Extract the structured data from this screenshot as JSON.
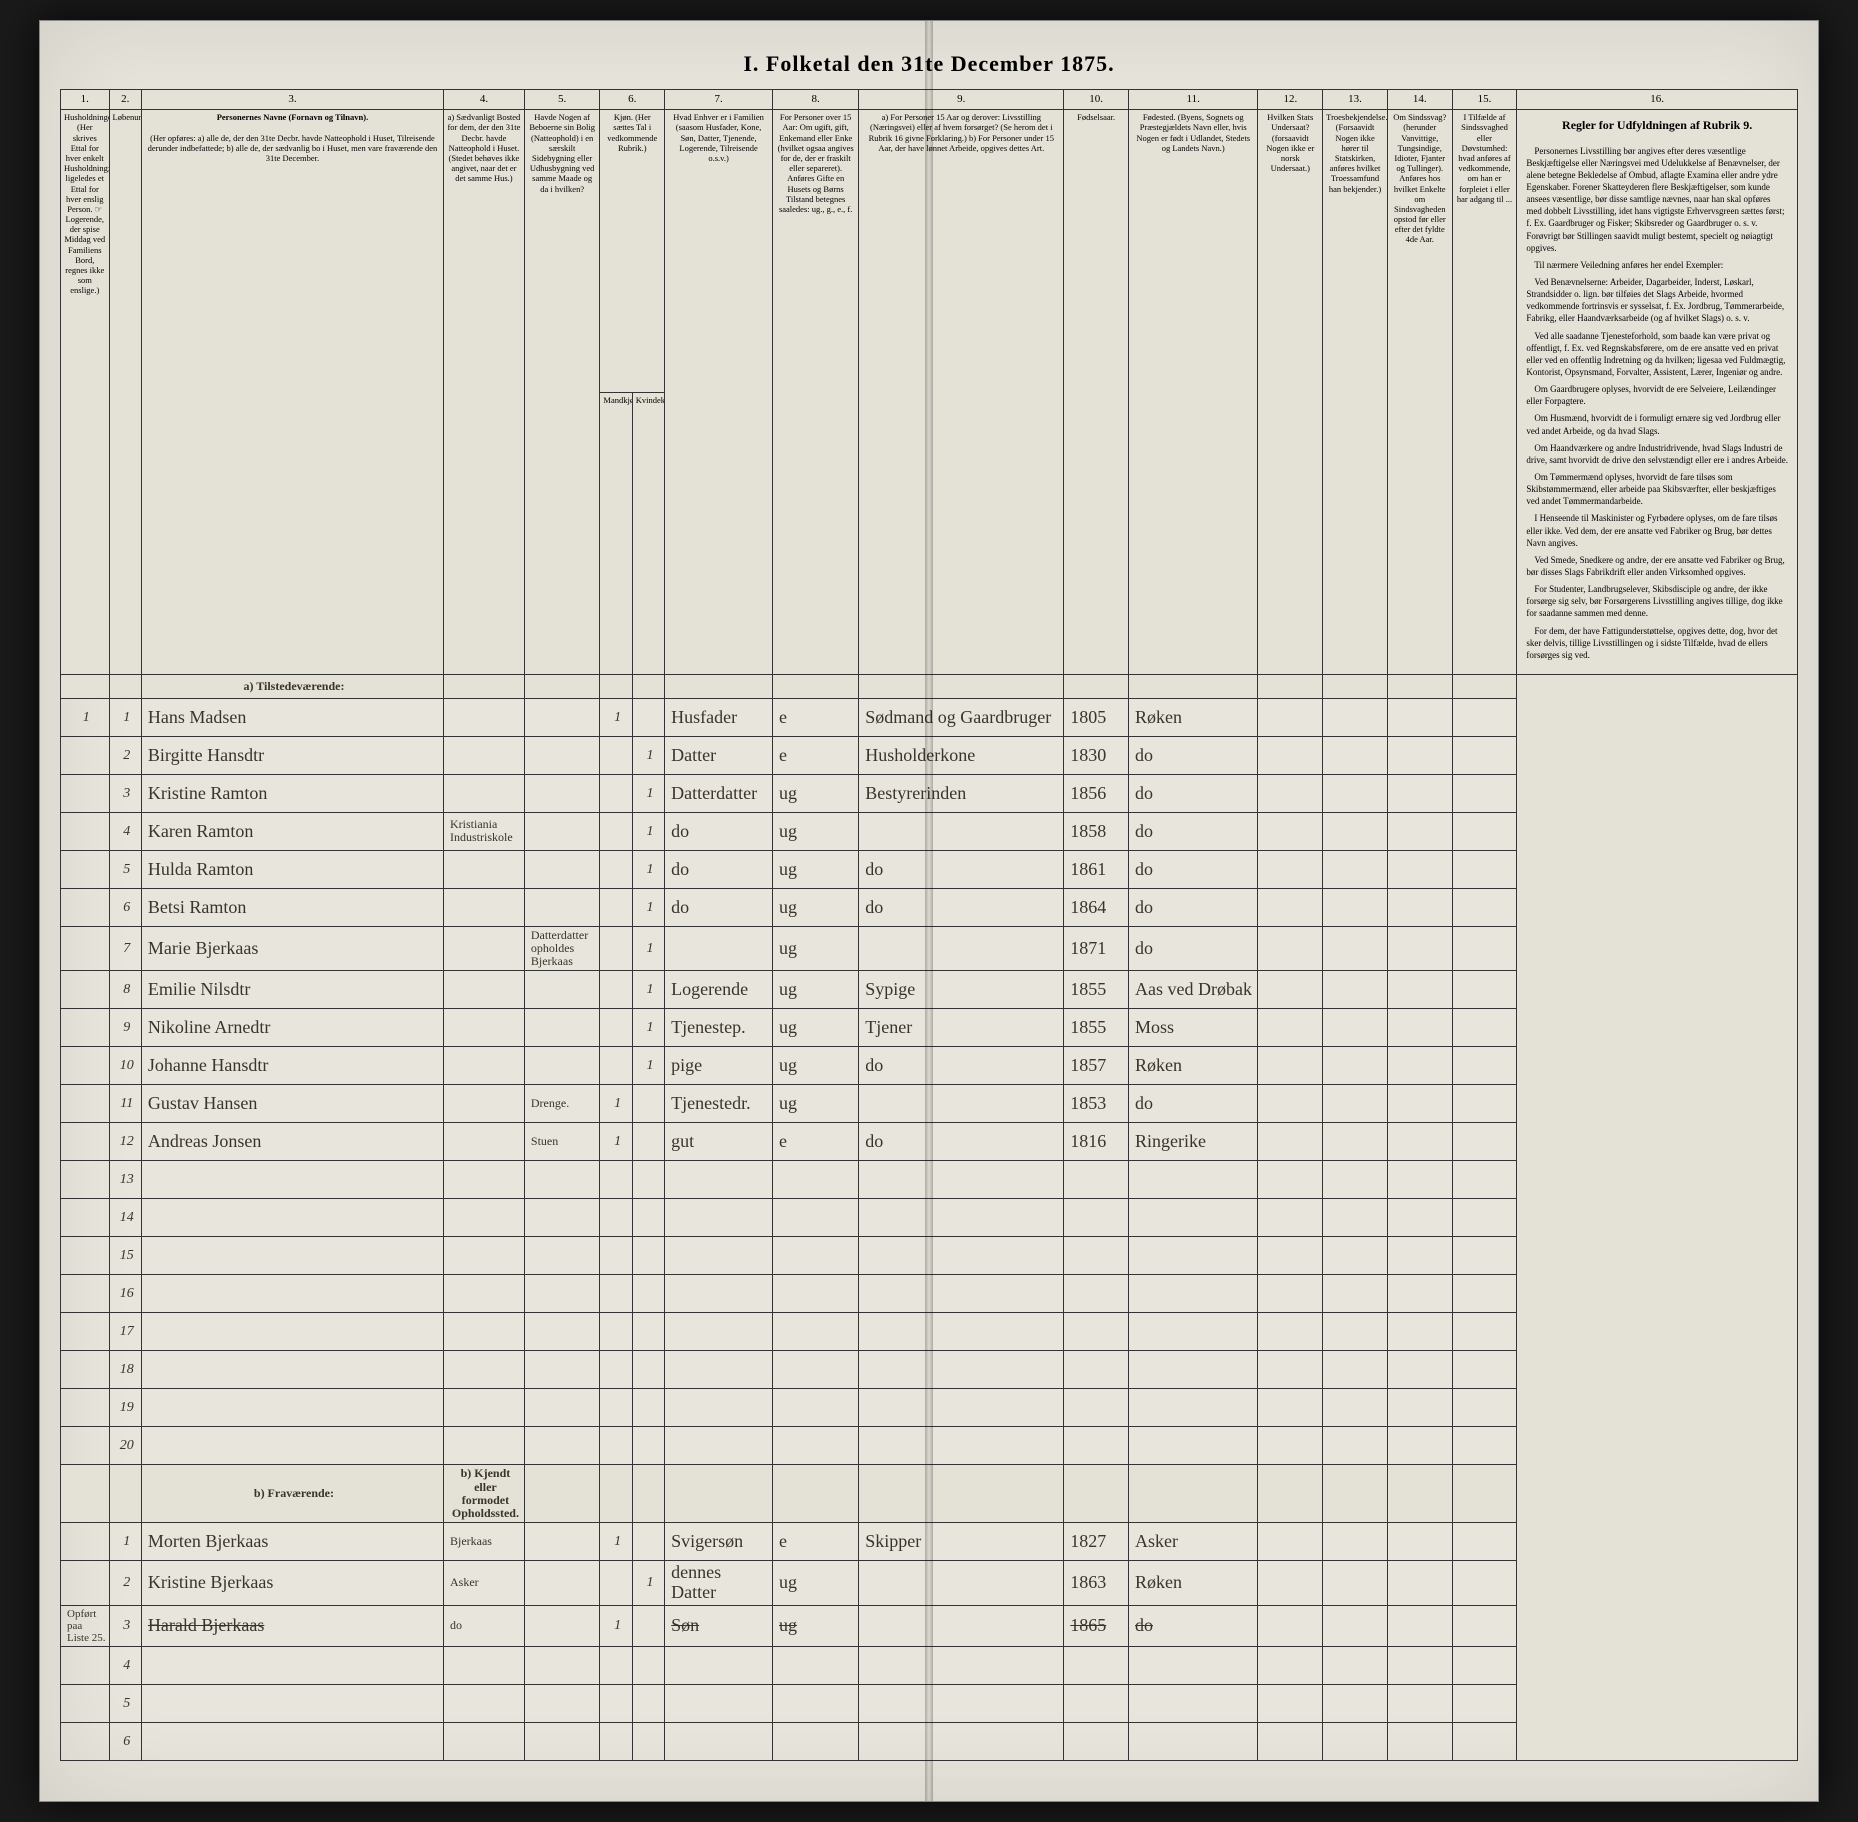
{
  "title": "I. Folketal den 31te December 1875.",
  "columns": {
    "nums": [
      "1.",
      "2.",
      "3.",
      "4.",
      "5.",
      "6.",
      "7.",
      "8.",
      "9.",
      "10.",
      "11.",
      "12.",
      "13.",
      "14.",
      "15.",
      "16."
    ],
    "h1": "Husholdninger. (Her skrives Ettal for hver enkelt Husholdning; ligeledes et Ettal for hver enslig Person. ☞ Logerende, der spise Middag ved Familiens Bord, regnes ikke som enslige.)",
    "h2": "Løbenummer.",
    "h3_title": "Personernes Navne (Fornavn og Tilnavn).",
    "h3_body": "(Her opføres: a) alle de, der den 31te Decbr. havde Natteophold i Huset, Tilreisende derunder indbefattede; b) alle de, der sædvanlig bo i Huset, men vare fraværende den 31te December.",
    "h4": "a) Sædvanligt Bosted for dem, der den 31te Decbr. havde Natteophold i Huset. (Stedet behøves ikke angivet, naar det er det samme Hus.)",
    "h5": "Havde Nogen af Beboerne sin Bolig (Natteophold) i en særskilt Sidebygning eller Udhusbygning ved samme Maade og da i hvilken?",
    "h6": "Kjøn. (Her sættes Tal i vedkommende Rubrik.)",
    "h6a": "Mandkjøn.",
    "h6b": "Kvindekjøn.",
    "h7": "Hvad Enhver er i Familien (saasom Husfader, Kone, Søn, Datter, Tjenende, Logerende, Tilreisende o.s.v.)",
    "h8": "For Personer over 15 Aar: Om ugift, gift, Enkemand eller Enke (hvilket ogsaa angives for de, der er fraskilt eller separeret). Anføres Gifte en Husets og Børns Tilstand betegnes saaledes: ug., g., e., f.",
    "h9": "a) For Personer 15 Aar og derover: Livsstilling (Næringsvei) eller af hvem forsørget? (Se herom det i Rubrik 16 givne Forklaring.) b) For Personer under 15 Aar, der have lønnet Arbeide, opgives dettes Art.",
    "h10": "Fødselsaar.",
    "h11": "Fødested. (Byens, Sognets og Præstegjældets Navn eller, hvis Nogen er født i Udlandet, Stedets og Landets Navn.)",
    "h12": "Hvilken Stats Undersaat? (forsaavidt Nogen ikke er norsk Undersaat.)",
    "h13": "Troesbekjendelse. (Forsaavidt Nogen ikke hører til Statskirken, anføres hvilket Troessamfund han bekjender.)",
    "h14": "Om Sindssvag? (herunder Vanvittige, Tungsindige, Idioter, Fjanter og Tullinger). Anføres hos hvilket Enkelte om Sindsvagheden opstod før eller efter det fyldte 4de Aar.",
    "h15": "I Tilfælde af Sindssvaghed eller Døvstumhed: hvad anføres af vedkommende, om han er forpleiet i eller har adgang til ...",
    "h16_title": "Regler for Udfyldningen af Rubrik 9.",
    "section_a": "a) Tilstedeværende:",
    "section_b": "b) Fraværende:",
    "section_b2": "b) Kjendt eller formodet Opholdssted."
  },
  "rows_a": [
    {
      "n": "1",
      "p": "1",
      "name": "Hans Madsen",
      "c4": "",
      "c5": "",
      "m": "1",
      "f": "",
      "rel": "Husfader",
      "ms": "e",
      "occ": "Sødmand og Gaardbruger",
      "yr": "1805",
      "bp": "Røken"
    },
    {
      "n": "",
      "p": "2",
      "name": "Birgitte Hansdtr",
      "c4": "",
      "c5": "",
      "m": "",
      "f": "1",
      "rel": "Datter",
      "ms": "e",
      "occ": "Husholderkone",
      "yr": "1830",
      "bp": "do"
    },
    {
      "n": "",
      "p": "3",
      "name": "Kristine Ramton",
      "c4": "",
      "c5": "",
      "m": "",
      "f": "1",
      "rel": "Datterdatter",
      "ms": "ug",
      "occ": "Bestyrerinden",
      "yr": "1856",
      "bp": "do"
    },
    {
      "n": "",
      "p": "4",
      "name": "Karen Ramton",
      "c4": "Kristiania Industriskole",
      "c5": "",
      "m": "",
      "f": "1",
      "rel": "do",
      "ms": "ug",
      "occ": "",
      "yr": "1858",
      "bp": "do"
    },
    {
      "n": "",
      "p": "5",
      "name": "Hulda Ramton",
      "c4": "",
      "c5": "",
      "m": "",
      "f": "1",
      "rel": "do",
      "ms": "ug",
      "occ": "do",
      "yr": "1861",
      "bp": "do"
    },
    {
      "n": "",
      "p": "6",
      "name": "Betsi Ramton",
      "c4": "",
      "c5": "",
      "m": "",
      "f": "1",
      "rel": "do",
      "ms": "ug",
      "occ": "do",
      "yr": "1864",
      "bp": "do"
    },
    {
      "n": "",
      "p": "7",
      "name": "Marie Bjerkaas",
      "c4": "",
      "c5": "Datterdatter opholdes Bjerkaas",
      "m": "",
      "f": "1",
      "rel": "",
      "ms": "ug",
      "occ": "",
      "yr": "1871",
      "bp": "do"
    },
    {
      "n": "",
      "p": "8",
      "name": "Emilie Nilsdtr",
      "c4": "",
      "c5": "",
      "m": "",
      "f": "1",
      "rel": "Logerende",
      "ms": "ug",
      "occ": "Sypige",
      "yr": "1855",
      "bp": "Aas ved Drøbak"
    },
    {
      "n": "",
      "p": "9",
      "name": "Nikoline Arnedtr",
      "c4": "",
      "c5": "",
      "m": "",
      "f": "1",
      "rel": "Tjenestep.",
      "ms": "ug",
      "occ": "Tjener",
      "yr": "1855",
      "bp": "Moss"
    },
    {
      "n": "",
      "p": "10",
      "name": "Johanne Hansdtr",
      "c4": "",
      "c5": "",
      "m": "",
      "f": "1",
      "rel": "pige",
      "ms": "ug",
      "occ": "do",
      "yr": "1857",
      "bp": "Røken"
    },
    {
      "n": "",
      "p": "11",
      "name": "Gustav Hansen",
      "c4": "",
      "c5": "Drenge.",
      "m": "1",
      "f": "",
      "rel": "Tjenestedr.",
      "ms": "ug",
      "occ": "",
      "yr": "1853",
      "bp": "do"
    },
    {
      "n": "",
      "p": "12",
      "name": "Andreas Jonsen",
      "c4": "",
      "c5": "Stuen",
      "m": "1",
      "f": "",
      "rel": "gut",
      "ms": "e",
      "occ": "do",
      "yr": "1816",
      "bp": "Ringerike"
    }
  ],
  "blank_a": [
    "13",
    "14",
    "15",
    "16",
    "17",
    "18",
    "19",
    "20"
  ],
  "rows_b": [
    {
      "n": "",
      "p": "1",
      "name": "Morten Bjerkaas",
      "c4": "Bjerkaas",
      "c5": "",
      "m": "1",
      "f": "",
      "rel": "Svigersøn",
      "ms": "e",
      "occ": "Skipper",
      "yr": "1827",
      "bp": "Asker",
      "struck": false,
      "side": ""
    },
    {
      "n": "",
      "p": "2",
      "name": "Kristine Bjerkaas",
      "c4": "Asker",
      "c5": "",
      "m": "",
      "f": "1",
      "rel": "dennes Datter",
      "ms": "ug",
      "occ": "",
      "yr": "1863",
      "bp": "Røken",
      "struck": false,
      "side": ""
    },
    {
      "n": "",
      "p": "3",
      "name": "Harald Bjerkaas",
      "c4": "do",
      "c5": "",
      "m": "1",
      "f": "",
      "rel": "Søn",
      "ms": "ug",
      "occ": "",
      "yr": "1865",
      "bp": "do",
      "struck": true,
      "side": "Opført paa Liste 25."
    }
  ],
  "blank_b": [
    "4",
    "5",
    "6"
  ],
  "instructions": [
    "Personernes Livsstilling bør angives efter deres væsentlige Beskjæftigelse eller Næringsvei med Udelukkelse af Benævnelser, der alene betegne Bekledelse af Ombud, aflagte Examina eller andre ydre Egenskaber. Forener Skatteyderen flere Beskjæftigelser, som kunde ansees væsentlige, bør disse samtlige nævnes, naar han skal opføres med dobbelt Livsstilling, idet hans vigtigste Erhvervsgreen sættes først; f. Ex. Gaardbruger og Fisker; Skibsreder og Gaardbruger o. s. v. Forøvrigt bør Stillingen saavidt muligt bestemt, specielt og nøiagtigt opgives.",
    "Til nærmere Veiledning anføres her endel Exempler:",
    "Ved Benævnelserne: Arbeider, Dagarbeider, Inderst, Løskarl, Strandsidder o. lign. bør tilføies det Slags Arbeide, hvormed vedkommende fortrinsvis er sysselsat, f. Ex. Jordbrug, Tømmerarbeide, Fabrikg, eller Haandværksarbeide (og af hvilket Slags) o. s. v.",
    "Ved alle saadanne Tjenesteforhold, som baade kan være privat og offentligt, f. Ex. ved Regnskabsførere, om de ere ansatte ved en privat eller ved en offentlig Indretning og da hvilken; ligesaa ved Fuldmægtig, Kontorist, Opsynsmand, Forvalter, Assistent, Lærer, Ingeniør og andre.",
    "Om Gaardbrugere oplyses, hvorvidt de ere Selveiere, Leilændinger eller Forpagtere.",
    "Om Husmænd, hvorvidt de i formuligt ernære sig ved Jordbrug eller ved andet Arbeide, og da hvad Slags.",
    "Om Haandværkere og andre Industridrivende, hvad Slags Industri de drive, samt hvorvidt de drive den selvstændigt eller ere i andres Arbeide.",
    "Om Tømmermænd oplyses, hvorvidt de fare tilsøs som Skibstømmermænd, eller arbeide paa Skibsværfter, eller beskjæftiges ved andet Tømmermandarbeide.",
    "I Henseende til Maskinister og Fyrbødere oplyses, om de fare tilsøs eller ikke. Ved dem, der ere ansatte ved Fabriker og Brug, bør dettes Navn angives.",
    "Ved Smede, Snedkere og andre, der ere ansatte ved Fabriker og Brug, bør disses Slags Fabrikdrift eller anden Virksomhed opgives.",
    "For Studenter, Landbrugselever, Skibsdisciple og andre, der ikke forsørge sig selv, bør Forsørgerens Livsstilling angives tillige, dog ikke for saadanne sammen med denne.",
    "For dem, der have Fattigunderstøttelse, opgives dette, dog, hvor det sker delvis, tillige Livsstillingen og i sidste Tilfælde, hvad de ellers forsørges sig ved."
  ]
}
